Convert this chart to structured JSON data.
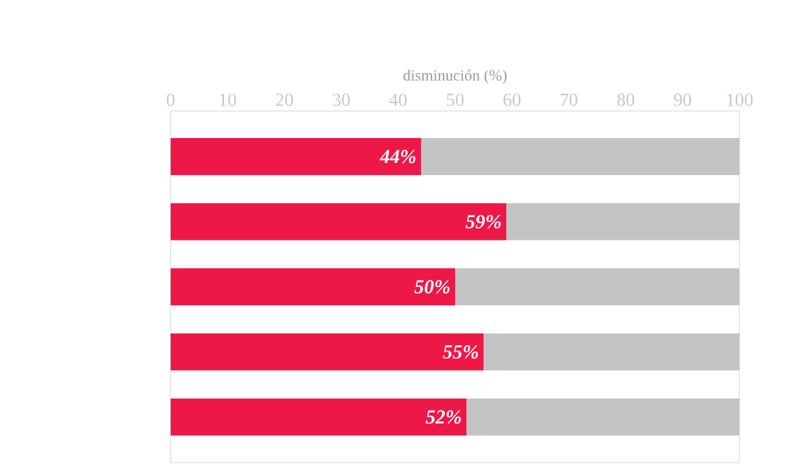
{
  "chart_data": {
    "type": "bar",
    "orientation": "horizontal",
    "stacked": true,
    "xlabel": "disminución (%)",
    "categories": [
      null,
      null,
      null,
      null,
      null
    ],
    "series": [
      {
        "color": "#ee1848",
        "values": [
          44,
          59,
          50,
          55,
          52
        ],
        "value_labels": [
          "44%",
          "59%",
          "50%",
          "55%",
          "52%"
        ]
      },
      {
        "color": "#c4c4c4",
        "values": [
          56,
          41,
          50,
          45,
          48
        ]
      }
    ],
    "xlim": [
      0,
      100
    ],
    "xticks": [
      0,
      10,
      20,
      30,
      40,
      50,
      60,
      70,
      80,
      90,
      100
    ],
    "tick_labels": "x"
  }
}
